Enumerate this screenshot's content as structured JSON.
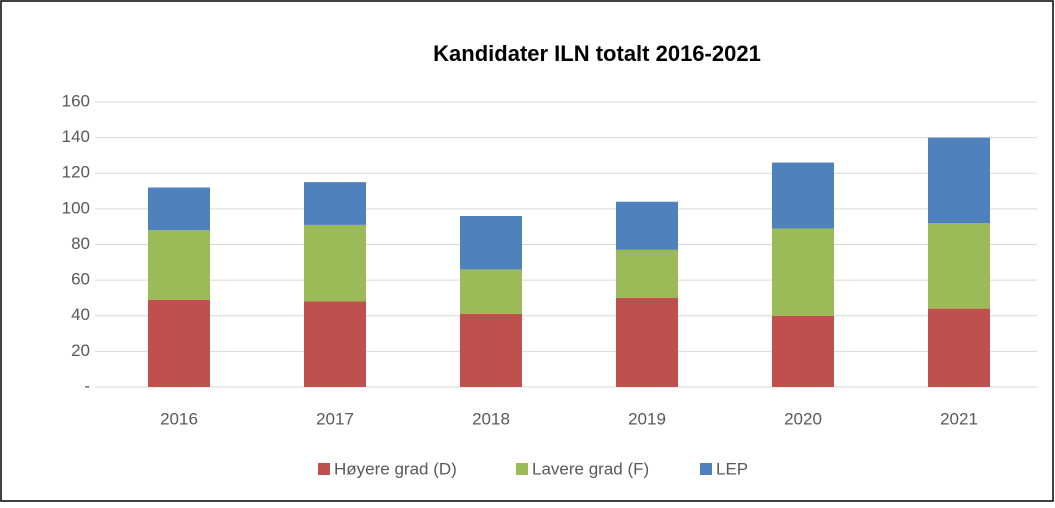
{
  "chart_data": {
    "type": "stacked_bar",
    "title": "Kandidater ILN totalt 2016-2021",
    "categories": [
      "2016",
      "2017",
      "2018",
      "2019",
      "2020",
      "2021"
    ],
    "series": [
      {
        "name": "Høyere grad (D)",
        "color": "#c0504d",
        "values": [
          49,
          48,
          41,
          50,
          40,
          44
        ]
      },
      {
        "name": "Lavere grad (F)",
        "color": "#9bbb59",
        "values": [
          39,
          43,
          25,
          27,
          49,
          48
        ]
      },
      {
        "name": "LEP",
        "color": "#4f81bd",
        "values": [
          24,
          24,
          30,
          27,
          37,
          48
        ]
      }
    ],
    "ylim": [
      0,
      160
    ],
    "yticks": [
      {
        "value": 0,
        "label": "-"
      },
      20,
      40,
      60,
      80,
      100,
      120,
      140,
      160
    ],
    "grid": true,
    "legend": "bottom"
  }
}
